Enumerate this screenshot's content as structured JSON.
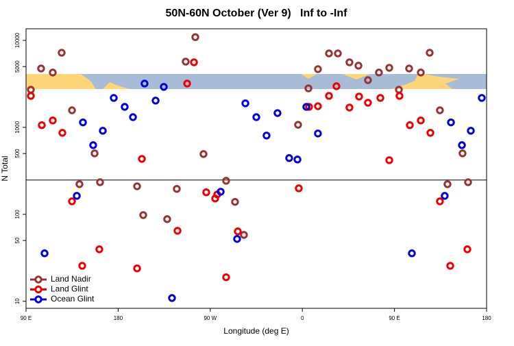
{
  "chart_data": {
    "type": "scatter",
    "title": "50N-60N October (Ver 9)   Inf to -Inf",
    "xlabel": "Longitude (deg E)",
    "ylabel": "N Total",
    "xlim": [
      90,
      540
    ],
    "xticks": [
      {
        "value": 90,
        "label": "90 E"
      },
      180,
      {
        "value": 270,
        "label": "90 W"
      },
      {
        "value": 360,
        "label": "0"
      },
      {
        "value": 450,
        "label": "90 E"
      },
      {
        "value": 540,
        "label": "180"
      }
    ],
    "ylim": [
      8.3,
      13600
    ],
    "yticks": [
      10,
      50,
      100,
      500,
      1000,
      5000,
      10000
    ],
    "log_y": true,
    "hline": 248,
    "legend": "lower left",
    "series": [
      {
        "name": "Land Nadir",
        "color": "#993333",
        "x": [
          94.7,
          104.7,
          116.1,
          124.8,
          134.9,
          142.2,
          157.0,
          162.3,
          198.5,
          204.5,
          227.9,
          237.3,
          246.0,
          255.4,
          263.4,
          285.5,
          294.2,
          302.9,
          355.8,
          365.9,
          375.2,
          386.0,
          394.7,
          406.0,
          414.8,
          424.1,
          434.8,
          444.9,
          454.3,
          464.3,
          475.7,
          484.4,
          494.4,
          501.8,
          516.5,
          521.9
        ],
        "values": [
          2710,
          4750,
          4270,
          7210,
          1570,
          222,
          502,
          234,
          210,
          98,
          88,
          196,
          5700,
          10900,
          493,
          243,
          139,
          58,
          1070,
          2810,
          4670,
          7080,
          7080,
          5600,
          5120,
          3490,
          4270,
          4840,
          2710,
          4750,
          4270,
          7210,
          1570,
          222,
          502,
          234
        ]
      },
      {
        "name": "Land Glint",
        "color": "#ee0000",
        "x": [
          94.7,
          105.4,
          116.1,
          125.5,
          134.9,
          144.9,
          161.6,
          198.5,
          203.2,
          238.0,
          247.4,
          254.1,
          266.1,
          274.8,
          276.8,
          285.5,
          296.9,
          356.5,
          366.5,
          375.2,
          386.0,
          393.3,
          406.0,
          415.4,
          424.1,
          436.2,
          444.9,
          454.9,
          465.0,
          475.7,
          485.1,
          494.4,
          504.5,
          521.2
        ],
        "values": [
          2300,
          1060,
          1200,
          865,
          141,
          25.6,
          39.6,
          23.9,
          434,
          64.7,
          3190,
          5600,
          179,
          152,
          169,
          18.9,
          63.6,
          199,
          1720,
          1750,
          2300,
          2970,
          1690,
          2260,
          1920,
          2180,
          419,
          2300,
          1060,
          1200,
          865,
          141,
          25.6,
          39.6
        ]
      },
      {
        "name": "Ocean Glint",
        "color": "#0000dd",
        "x": [
          108.1,
          139.6,
          145.6,
          155.6,
          165.0,
          175.7,
          186.4,
          194.5,
          205.8,
          216.6,
          224.6,
          232.6,
          280.2,
          296.2,
          304.3,
          315.0,
          325.0,
          335.7,
          347.1,
          355.2,
          363.9,
          375.2,
          467.0,
          499.1,
          505.2,
          515.9,
          524.6,
          535.3
        ],
        "values": [
          35.6,
          163,
          1140,
          624,
          914,
          2180,
          1720,
          1310,
          3190,
          2030,
          2920,
          10.9,
          182,
          52.1,
          1890,
          1310,
          805,
          1460,
          443,
          427,
          1720,
          850,
          35.6,
          163,
          1140,
          624,
          914,
          2180
        ]
      }
    ]
  }
}
